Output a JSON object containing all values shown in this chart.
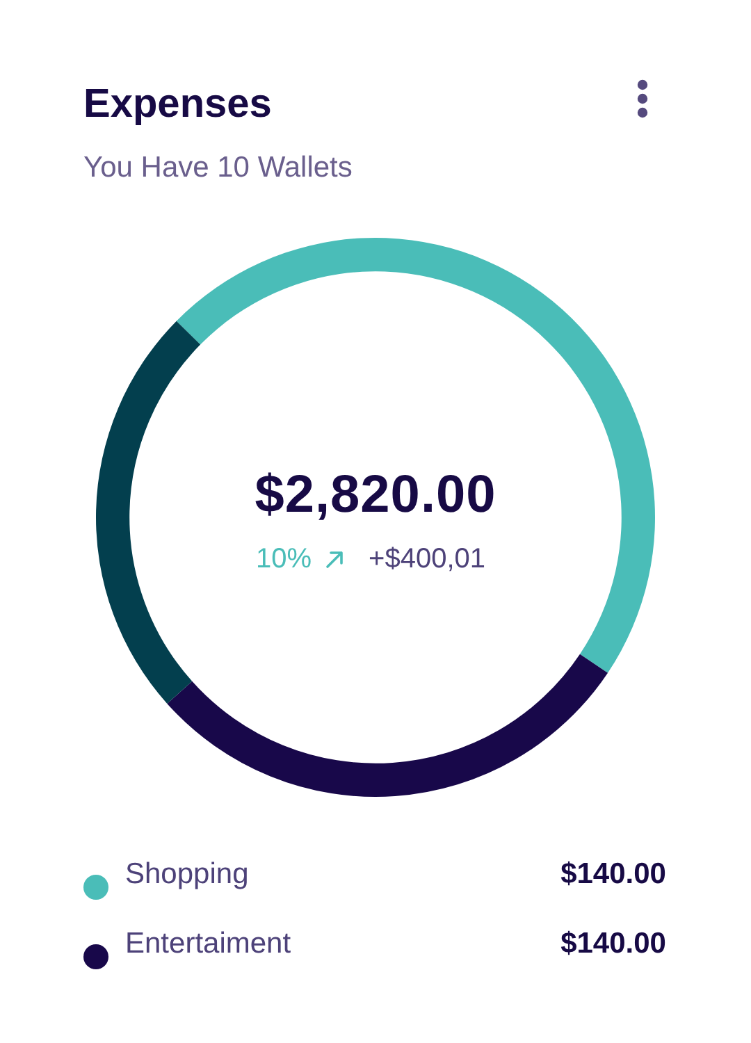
{
  "chart_data": {
    "type": "donut",
    "title": "Expenses",
    "subtitle": "You Have 10 Wallets",
    "categories": [
      "Shopping",
      "Entertaiment",
      null
    ],
    "values": [
      47,
      29,
      24
    ],
    "colors": [
      "#4abdb8",
      "#18084a",
      "#033f4e"
    ],
    "legend": "bottom",
    "annotations": [
      "$2,820.00",
      "10%",
      "+$400,01",
      "$140.00",
      "$140.00"
    ]
  }
}
